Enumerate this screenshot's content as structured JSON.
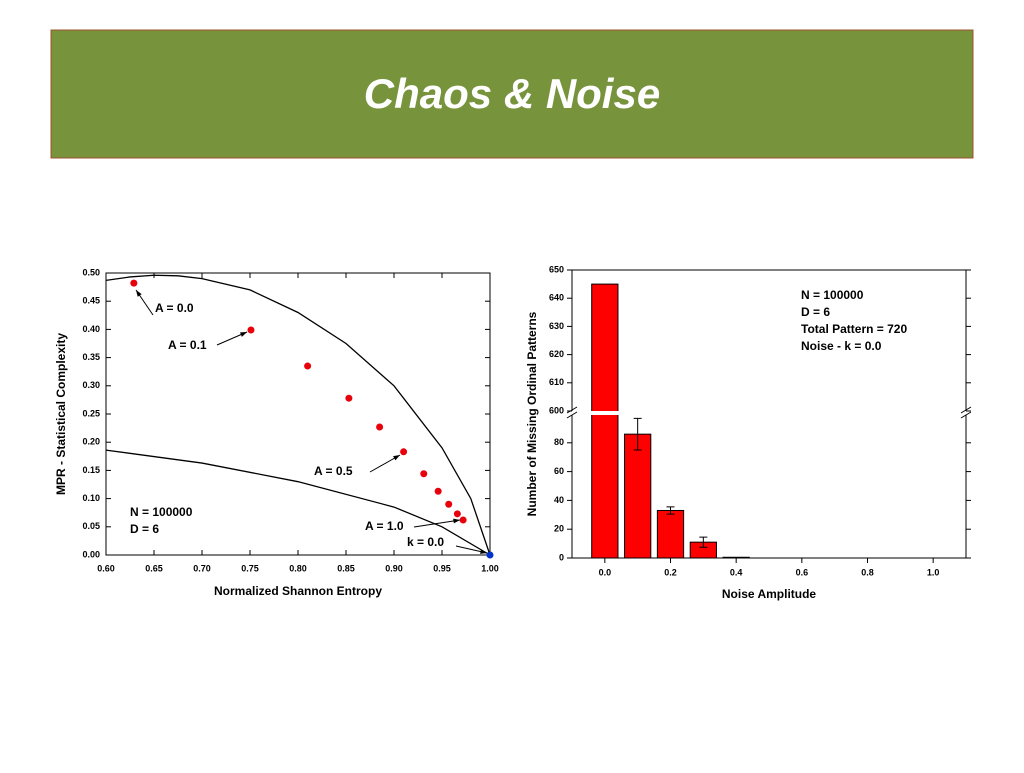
{
  "header": {
    "title": "Chaos & Noise"
  },
  "chart_data": [
    {
      "type": "scatter",
      "xlabel": "Normalized Shannon Entropy",
      "ylabel": "MPR - Statistical  Complexity",
      "xlim": [
        0.6,
        1.0
      ],
      "xticks": [
        {
          "value": 0.6,
          "label": "0.60"
        },
        0.65,
        {
          "value": 0.7,
          "label": "0.70"
        },
        0.75,
        {
          "value": 0.8,
          "label": "0.80"
        },
        0.85,
        {
          "value": 0.9,
          "label": "0.90"
        },
        0.95,
        {
          "value": 1.0,
          "label": "1.00"
        }
      ],
      "ylim": [
        0,
        0.5
      ],
      "yticks": [
        {
          "value": 0,
          "label": "0.00"
        },
        0.05,
        {
          "value": 0.1,
          "label": "0.10"
        },
        0.15,
        {
          "value": 0.2,
          "label": "0.20"
        },
        0.25,
        {
          "value": 0.3,
          "label": "0.30"
        },
        0.35,
        {
          "value": 0.4,
          "label": "0.40"
        },
        0.45,
        {
          "value": 0.5,
          "label": "0.50"
        }
      ],
      "series": [
        {
          "color": "#e8000b",
          "x": [
            0.629,
            0.751,
            0.81,
            0.853,
            0.885,
            0.91,
            0.931,
            0.946,
            0.957,
            0.966,
            0.972
          ],
          "values": [
            0.482,
            0.399,
            0.335,
            0.278,
            0.227,
            0.183,
            0.144,
            0.113,
            0.09,
            0.073,
            0.062
          ]
        },
        {
          "color": "#0033cc",
          "x": [
            1.0
          ],
          "values": [
            0.0
          ]
        }
      ],
      "curves": [
        {
          "color": "#000000",
          "x": [
            0.6,
            0.625,
            0.65,
            0.675,
            0.7,
            0.75,
            0.8,
            0.85,
            0.9,
            0.95,
            0.98,
            1.0
          ],
          "values": [
            0.487,
            0.493,
            0.496,
            0.495,
            0.49,
            0.47,
            0.43,
            0.375,
            0.3,
            0.19,
            0.1,
            0.0
          ]
        },
        {
          "color": "#000000",
          "x": [
            0.6,
            0.7,
            0.8,
            0.9,
            0.95,
            1.0
          ],
          "values": [
            0.186,
            0.163,
            0.13,
            0.085,
            0.05,
            0.0
          ]
        }
      ],
      "annotations": [
        "A = 0.0",
        "A = 0.1",
        "A = 0.5",
        "A = 1.0",
        "k = 0.0",
        "N = 100000",
        "D = 6"
      ]
    },
    {
      "type": "bar",
      "xlabel": "Noise  Amplitude",
      "ylabel": "Number  of  Missing  Ordinal  Patterns",
      "color": "#ff0000",
      "x": [
        0.0,
        0.1,
        0.2,
        0.3,
        0.4
      ],
      "values": [
        645,
        86,
        33,
        11,
        0.5
      ],
      "errors": [
        null,
        11,
        2.5,
        3.5,
        null
      ],
      "xlim": [
        -0.1,
        1.1
      ],
      "xticks": [
        {
          "value": 0.0,
          "label": "0.0"
        },
        0.2,
        0.4,
        0.6,
        0.8,
        {
          "value": 1.0,
          "label": "1.0"
        }
      ],
      "ylim": [
        0,
        650
      ],
      "ybreak": [
        100,
        600
      ],
      "yticks": [
        0,
        20,
        40,
        60,
        80,
        600,
        610,
        620,
        630,
        640,
        650
      ],
      "annotations": [
        "N = 100000",
        "D = 6",
        "Total Pattern = 720",
        "Noise - k = 0.0"
      ]
    }
  ]
}
